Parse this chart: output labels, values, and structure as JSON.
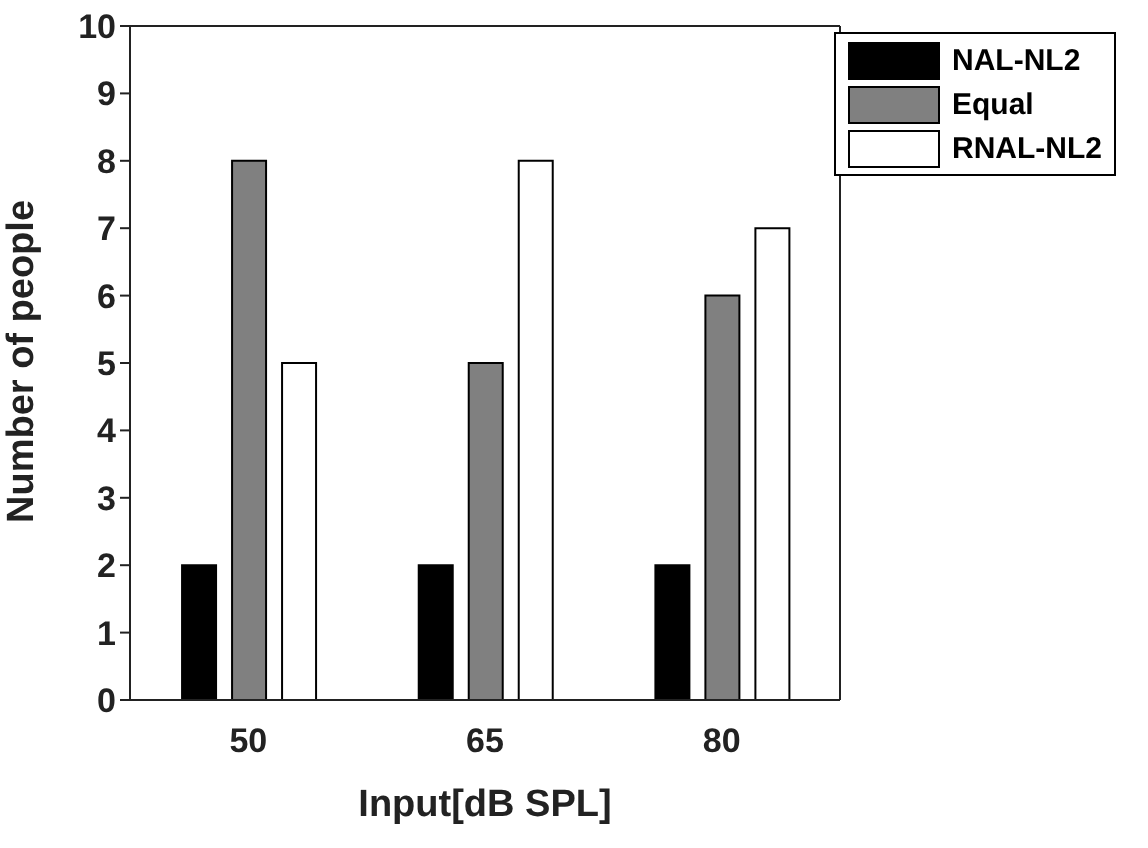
{
  "chart_data": {
    "type": "bar",
    "xlabel": "Input[dB SPL]",
    "ylabel": "Number of people",
    "categories": [
      "50",
      "65",
      "80"
    ],
    "series": [
      {
        "name": "NAL-NL2",
        "color": "#000000",
        "values": [
          2,
          2,
          2
        ]
      },
      {
        "name": "Equal",
        "color": "#808080",
        "values": [
          8,
          5,
          6
        ]
      },
      {
        "name": "RNAL-NL2",
        "color": "#ffffff",
        "values": [
          5,
          8,
          7
        ]
      }
    ],
    "ylim": [
      0,
      10
    ],
    "yticks": [
      0,
      1,
      2,
      3,
      4,
      5,
      6,
      7,
      8,
      9,
      10
    ],
    "grid": false,
    "legend": "top right"
  }
}
